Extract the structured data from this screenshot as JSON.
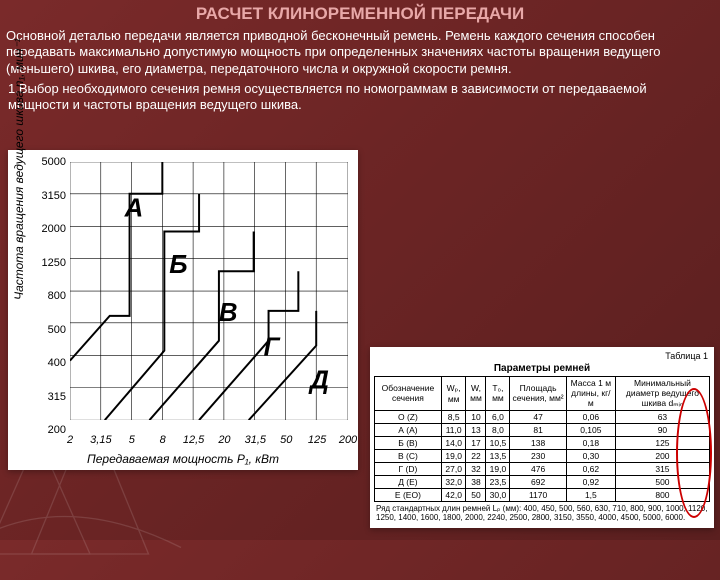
{
  "title": "РАСЧЕТ КЛИНОРЕМЕННОЙ ПЕРЕДАЧИ",
  "paragraph1": "Основной деталью передачи является приводной бесконечный ремень. Ремень каждого сечения способен передавать максимально допустимую мощность при определенных значениях частоты вращения ведущего (меньшего) шкива, его диаметра, передаточного числа и окружной скорости ремня.",
  "paragraph2": "1.Выбор необходимого сечения ремня осуществляется по номограммам в зависимости от передаваемой мощности и частоты вращения ведущего шкива.",
  "chart": {
    "type": "step-region-nomogram",
    "ylabel": "Частота вращения ведущего шкива n₁, мин⁻¹",
    "xlabel": "Передаваемая мощность P₁, кВт",
    "xticks": [
      "2",
      "3,15",
      "5",
      "8",
      "12,5",
      "20",
      "31,5",
      "50",
      "125",
      "200"
    ],
    "yticks": [
      "200",
      "315",
      "400",
      "500",
      "800",
      "1250",
      "2000",
      "3150",
      "5000"
    ],
    "region_labels": [
      "А",
      "Б",
      "В",
      "Г",
      "Д"
    ],
    "grid_color": "#000000",
    "bg_color": "#ffffff",
    "font_color": "#000000",
    "label_font_size": 20,
    "tick_font_size": 11
  },
  "table": {
    "tag": "Таблица 1",
    "title": "Параметры ремней",
    "columns": [
      "Обозначение сечения",
      "Wₚ, мм",
      "W, мм",
      "T₀, мм",
      "Площадь сечения, мм²",
      "Масса 1 м длины, кг/м",
      "Минимальный диаметр ведущего шкива dₘᵢₙ"
    ],
    "rows": [
      [
        "О (Z)",
        "8,5",
        "10",
        "6,0",
        "47",
        "0,06",
        "63"
      ],
      [
        "А (A)",
        "11,0",
        "13",
        "8,0",
        "81",
        "0,105",
        "90"
      ],
      [
        "Б (B)",
        "14,0",
        "17",
        "10,5",
        "138",
        "0,18",
        "125"
      ],
      [
        "В (C)",
        "19,0",
        "22",
        "13,5",
        "230",
        "0,30",
        "200"
      ],
      [
        "Г (D)",
        "27,0",
        "32",
        "19,0",
        "476",
        "0,62",
        "315"
      ],
      [
        "Д (E)",
        "32,0",
        "38",
        "23,5",
        "692",
        "0,92",
        "500"
      ],
      [
        "Е (EO)",
        "42,0",
        "50",
        "30,0",
        "1170",
        "1,5",
        "800"
      ]
    ],
    "footnote": "Ряд стандартных длин ремней Lₚ (мм): 400, 450, 500, 560, 630, 710, 800, 900, 1000, 1120, 1250, 1400, 1600, 1800, 2000, 2240, 2500, 2800, 3150, 3550, 4000, 4500, 5000, 6000.",
    "highlight_column_index": 6,
    "highlight_color": "#cc0000"
  },
  "colors": {
    "slide_bg_start": "#7a2a2a",
    "slide_bg_end": "#5a1f1f",
    "title_color": "#e8a8a8",
    "text_color": "#ffffff",
    "panel_bg": "#ffffff"
  }
}
